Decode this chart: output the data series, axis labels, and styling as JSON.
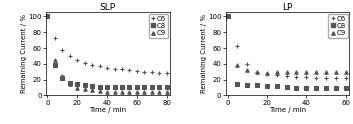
{
  "slp": {
    "title": "SLP",
    "c6": {
      "time": [
        0,
        5,
        10,
        15,
        20,
        25,
        30,
        35,
        40,
        45,
        50,
        55,
        60,
        65,
        70,
        75,
        80
      ],
      "values": [
        100,
        73,
        58,
        50,
        45,
        41,
        38,
        37,
        35,
        34,
        33,
        32,
        31,
        30,
        30,
        29,
        28
      ]
    },
    "c8": {
      "time": [
        0,
        5,
        10,
        15,
        20,
        25,
        30,
        35,
        40,
        45,
        50,
        55,
        60,
        65,
        70,
        75,
        80
      ],
      "values": [
        100,
        38,
        22,
        16,
        14,
        13,
        12,
        11,
        11,
        11,
        11,
        11,
        11,
        11,
        11,
        11,
        11
      ]
    },
    "c9": {
      "time": [
        0,
        5,
        10,
        15,
        20,
        25,
        30,
        35,
        40,
        45,
        50,
        55,
        60,
        65,
        70,
        75,
        80
      ],
      "values": [
        100,
        45,
        25,
        15,
        10,
        8,
        7,
        6,
        5,
        5,
        5,
        5,
        5,
        5,
        5,
        5,
        5
      ]
    }
  },
  "lp": {
    "title": "LP",
    "c6": {
      "time": [
        0,
        5,
        10,
        15,
        20,
        25,
        30,
        35,
        40,
        45,
        50,
        55,
        60
      ],
      "values": [
        100,
        63,
        40,
        30,
        27,
        26,
        24,
        23,
        23,
        22,
        22,
        22,
        22
      ]
    },
    "c8": {
      "time": [
        0,
        5,
        10,
        15,
        20,
        25,
        30,
        35,
        40,
        45,
        50,
        55,
        60
      ],
      "values": [
        100,
        15,
        13,
        13,
        12,
        12,
        11,
        10,
        10,
        10,
        10,
        10,
        10
      ]
    },
    "c9": {
      "time": [
        0,
        5,
        10,
        15,
        20,
        25,
        30,
        35,
        40,
        45,
        50,
        55,
        60
      ],
      "values": [
        100,
        38,
        32,
        30,
        29,
        30,
        30,
        30,
        30,
        30,
        30,
        30,
        30
      ]
    }
  },
  "xlabel": "Time / min",
  "ylabel": "Remaining Current / %",
  "ylim": [
    0,
    105
  ],
  "xlim_slp": [
    -1,
    82
  ],
  "xlim_lp": [
    -1,
    62
  ],
  "xticks_slp": [
    0,
    20,
    40,
    60,
    80
  ],
  "xticks_lp": [
    0,
    20,
    40,
    60
  ],
  "yticks": [
    0,
    20,
    40,
    60,
    80,
    100
  ],
  "color": "#555555",
  "marker_c6": "+",
  "marker_c8": "s",
  "marker_c9": "^",
  "legend_labels": [
    "C6",
    "C8",
    "C9"
  ],
  "fontsize": 5,
  "title_fontsize": 6.5
}
